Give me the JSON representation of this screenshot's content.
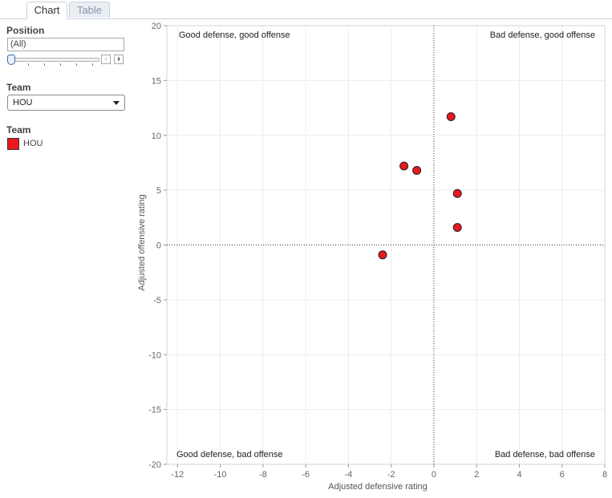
{
  "tabs": [
    {
      "label": "Chart",
      "active": true
    },
    {
      "label": "Table",
      "active": false
    }
  ],
  "filters": {
    "position": {
      "label": "Position",
      "value": "(All)"
    },
    "team_filter": {
      "label": "Team",
      "selected": "HOU"
    },
    "team_legend": {
      "label": "Team",
      "items": [
        {
          "name": "HOU",
          "color": "#e8191e"
        }
      ]
    }
  },
  "chart_data": {
    "type": "scatter",
    "title": "",
    "xlabel": "Adjusted defensive rating",
    "ylabel": "Adjusted offensive rating",
    "xlim": [
      -12.5,
      8
    ],
    "ylim": [
      -20,
      20
    ],
    "xticks": [
      -12,
      -10,
      -8,
      -6,
      -4,
      -2,
      0,
      2,
      4,
      6,
      8
    ],
    "yticks": [
      -20,
      -15,
      -10,
      -5,
      0,
      5,
      10,
      15,
      20
    ],
    "grid": true,
    "reference_lines": {
      "x": 0,
      "y": 0
    },
    "quadrant_labels": {
      "top_left": "Good defense, good offense",
      "top_right": "Bad defense, good offense",
      "bottom_left": "Good defense, bad offense",
      "bottom_right": "Bad defense, bad offense"
    },
    "series": [
      {
        "color": "#e8191e",
        "points": [
          {
            "x": 0.8,
            "y": 11.7
          },
          {
            "x": -1.4,
            "y": 7.2
          },
          {
            "x": -0.8,
            "y": 6.8
          },
          {
            "x": 1.1,
            "y": 4.7
          },
          {
            "x": 1.1,
            "y": 1.6
          },
          {
            "x": -2.4,
            "y": -0.9
          }
        ]
      }
    ]
  }
}
